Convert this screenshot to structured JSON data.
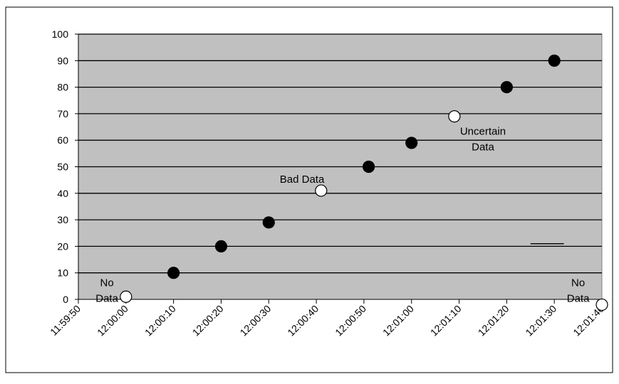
{
  "chart_data": {
    "type": "scatter",
    "title": "",
    "xlabel": "",
    "ylabel": "",
    "xlim": [
      "11:59:50",
      "12:01:40"
    ],
    "ylim": [
      0,
      100
    ],
    "y_ticks": [
      0,
      10,
      20,
      30,
      40,
      50,
      60,
      70,
      80,
      90,
      100
    ],
    "x_ticks": [
      "11:59:50",
      "12:00:00",
      "12:00:10",
      "12:00:20",
      "12:00:30",
      "12:00:40",
      "12:00:50",
      "12:01:00",
      "12:01:10",
      "12:01:20",
      "12:01:30",
      "12:01:40"
    ],
    "grid": "horizontal",
    "plot_background": "#c0c0c0",
    "series": [
      {
        "good_marker_color": "#000000",
        "flagged_marker_color": "#ffffff",
        "points": [
          {
            "x": "12:00:00",
            "y": 1,
            "flagged": true
          },
          {
            "x": "12:00:10",
            "y": 10,
            "flagged": false
          },
          {
            "x": "12:00:20",
            "y": 20,
            "flagged": false
          },
          {
            "x": "12:00:30",
            "y": 29,
            "flagged": false
          },
          {
            "x": "12:00:41",
            "y": 41,
            "flagged": true
          },
          {
            "x": "12:00:51",
            "y": 50,
            "flagged": false
          },
          {
            "x": "12:01:00",
            "y": 59,
            "flagged": false
          },
          {
            "x": "12:01:09",
            "y": 69,
            "flagged": true
          },
          {
            "x": "12:01:20",
            "y": 80,
            "flagged": false
          },
          {
            "x": "12:01:30",
            "y": 90,
            "flagged": false
          },
          {
            "x": "12:01:40",
            "y": -2,
            "flagged": true
          }
        ]
      }
    ],
    "annotations": [
      {
        "lines": [
          "No",
          "Data"
        ],
        "x": "11:59:56",
        "y": 5
      },
      {
        "lines": [
          "Bad Data"
        ],
        "x": "12:00:37",
        "y": 44
      },
      {
        "lines": [
          "Uncertain",
          "Data"
        ],
        "x": "12:01:15",
        "y": 62
      },
      {
        "lines": [
          "No",
          "Data"
        ],
        "x": "12:01:35",
        "y": 5
      }
    ],
    "reference_line": {
      "x_start": "12:01:25",
      "x_end": "12:01:32",
      "y": 21
    }
  }
}
